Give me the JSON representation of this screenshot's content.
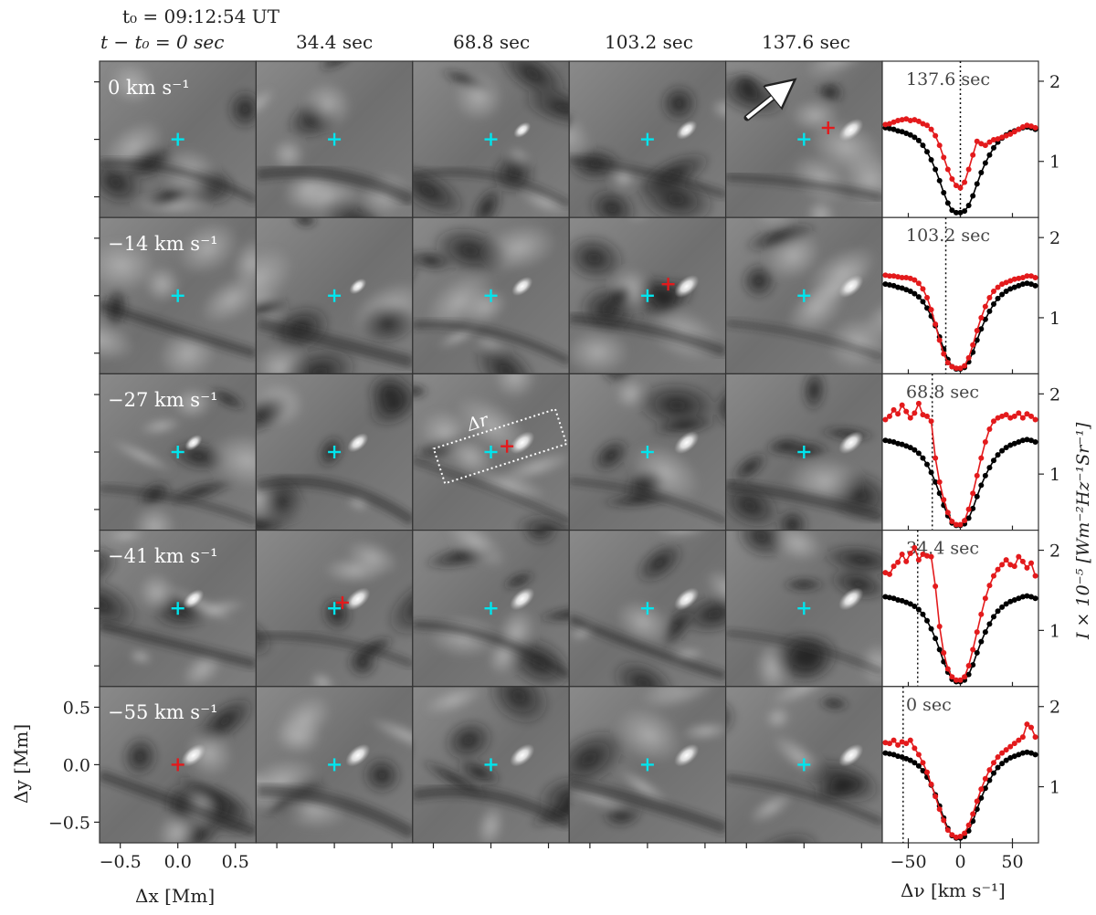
{
  "header": {
    "t0_label": "t₀ = 09:12:54 UT",
    "col_labels": [
      "t − t₀ = 0 sec",
      "34.4 sec",
      "68.8 sec",
      "103.2 sec",
      "137.6 sec"
    ]
  },
  "chart_data": {
    "type": "line",
    "image_grid": {
      "rows_velocity_labels": [
        "0 km s⁻¹",
        "−14 km s⁻¹",
        "−27 km s⁻¹",
        "−41 km s⁻¹",
        "−55 km s⁻¹"
      ],
      "x_axis": {
        "label": "Δx [Mm]",
        "ticks": [
          -0.5,
          0.0,
          0.5
        ],
        "tick_labels": [
          "−0.5",
          "0.0",
          "0.5"
        ],
        "range": [
          -0.68,
          0.68
        ]
      },
      "y_axis": {
        "label": "Δy [Mm]",
        "ticks": [
          -0.5,
          0.0,
          0.5
        ],
        "tick_labels": [
          "−0.5",
          "0.0",
          "0.5"
        ],
        "range": [
          -0.68,
          0.68
        ]
      },
      "box_annotation": "Δr",
      "markers": [
        {
          "row": 0,
          "col": 4,
          "red": [
            0.21,
            0.1
          ]
        },
        {
          "row": 1,
          "col": 3,
          "red": [
            0.18,
            0.1
          ]
        },
        {
          "row": 2,
          "col": 2,
          "red": [
            0.14,
            0.05
          ]
        },
        {
          "row": 3,
          "col": 1,
          "red": [
            0.07,
            0.05
          ]
        },
        {
          "row": 4,
          "col": 0,
          "red": [
            0.0,
            0.0
          ]
        }
      ]
    },
    "profiles": {
      "xlabel": "Δν [km s⁻¹]",
      "ylabel": "I × 10⁻⁵ [Wm⁻²Hz⁻¹Sr⁻¹]",
      "xlim": [
        -75,
        75
      ],
      "ylim": [
        0.3,
        2.25
      ],
      "xticks": [
        -50,
        0,
        50
      ],
      "xtick_labels": [
        "−50",
        "0",
        "50"
      ],
      "yticks": [
        1,
        2
      ],
      "ytick_labels": [
        "1",
        "2"
      ],
      "x": [
        -72,
        -68,
        -64,
        -60,
        -56,
        -52,
        -48,
        -44,
        -40,
        -36,
        -32,
        -28,
        -24,
        -20,
        -16,
        -12,
        -8,
        -4,
        0,
        4,
        8,
        12,
        16,
        20,
        24,
        28,
        32,
        36,
        40,
        44,
        48,
        52,
        56,
        60,
        64,
        68,
        72
      ],
      "panels": [
        {
          "label": "137.6 sec",
          "vline": 0,
          "black": [
            1.42,
            1.41,
            1.4,
            1.38,
            1.37,
            1.35,
            1.33,
            1.3,
            1.26,
            1.2,
            1.12,
            1.02,
            0.9,
            0.76,
            0.61,
            0.48,
            0.39,
            0.36,
            0.36,
            0.38,
            0.45,
            0.57,
            0.72,
            0.86,
            0.98,
            1.08,
            1.17,
            1.24,
            1.29,
            1.33,
            1.36,
            1.38,
            1.4,
            1.42,
            1.43,
            1.42,
            1.4
          ],
          "red": [
            1.46,
            1.47,
            1.49,
            1.51,
            1.52,
            1.53,
            1.51,
            1.52,
            1.5,
            1.47,
            1.45,
            1.4,
            1.32,
            1.2,
            1.05,
            0.9,
            0.78,
            0.7,
            0.67,
            0.74,
            0.9,
            1.08,
            1.25,
            1.22,
            1.2,
            1.24,
            1.27,
            1.28,
            1.3,
            1.32,
            1.34,
            1.37,
            1.4,
            1.43,
            1.45,
            1.44,
            1.42
          ]
        },
        {
          "label": "103.2 sec",
          "vline": -14,
          "black": [
            1.42,
            1.41,
            1.4,
            1.38,
            1.37,
            1.35,
            1.33,
            1.3,
            1.26,
            1.2,
            1.12,
            1.02,
            0.9,
            0.76,
            0.61,
            0.48,
            0.39,
            0.36,
            0.36,
            0.38,
            0.45,
            0.57,
            0.72,
            0.86,
            0.98,
            1.08,
            1.17,
            1.24,
            1.29,
            1.33,
            1.36,
            1.38,
            1.4,
            1.42,
            1.43,
            1.42,
            1.4
          ],
          "red": [
            1.53,
            1.52,
            1.52,
            1.51,
            1.5,
            1.5,
            1.49,
            1.47,
            1.43,
            1.36,
            1.25,
            1.1,
            0.92,
            0.72,
            0.55,
            0.44,
            0.39,
            0.37,
            0.37,
            0.4,
            0.5,
            0.66,
            0.84,
            1.0,
            1.14,
            1.25,
            1.33,
            1.38,
            1.42,
            1.44,
            1.46,
            1.48,
            1.49,
            1.5,
            1.52,
            1.52,
            1.5
          ]
        },
        {
          "label": "68.8 sec",
          "vline": -27,
          "black": [
            1.42,
            1.41,
            1.4,
            1.38,
            1.37,
            1.35,
            1.33,
            1.3,
            1.26,
            1.2,
            1.12,
            1.02,
            0.9,
            0.76,
            0.61,
            0.48,
            0.39,
            0.36,
            0.36,
            0.38,
            0.45,
            0.57,
            0.72,
            0.86,
            0.98,
            1.08,
            1.17,
            1.24,
            1.29,
            1.33,
            1.36,
            1.38,
            1.4,
            1.42,
            1.43,
            1.42,
            1.4
          ],
          "red": [
            1.68,
            1.72,
            1.8,
            1.75,
            1.86,
            1.78,
            1.7,
            1.76,
            1.88,
            1.74,
            1.72,
            1.66,
            1.2,
            0.9,
            0.68,
            0.52,
            0.41,
            0.37,
            0.37,
            0.42,
            0.56,
            0.76,
            0.98,
            1.2,
            1.4,
            1.56,
            1.66,
            1.7,
            1.72,
            1.74,
            1.7,
            1.72,
            1.76,
            1.7,
            1.75,
            1.72,
            1.68
          ]
        },
        {
          "label": "34.4 sec",
          "vline": -41,
          "black": [
            1.42,
            1.41,
            1.4,
            1.38,
            1.37,
            1.35,
            1.33,
            1.3,
            1.26,
            1.2,
            1.12,
            1.02,
            0.9,
            0.76,
            0.61,
            0.48,
            0.39,
            0.36,
            0.36,
            0.38,
            0.45,
            0.57,
            0.72,
            0.86,
            0.98,
            1.08,
            1.17,
            1.24,
            1.29,
            1.33,
            1.36,
            1.38,
            1.4,
            1.42,
            1.43,
            1.42,
            1.4
          ],
          "red": [
            1.72,
            1.7,
            1.8,
            1.85,
            1.95,
            1.86,
            1.96,
            2.03,
            1.88,
            1.95,
            1.93,
            1.92,
            1.55,
            1.05,
            0.72,
            0.52,
            0.42,
            0.38,
            0.38,
            0.42,
            0.56,
            0.76,
            0.98,
            1.2,
            1.4,
            1.56,
            1.68,
            1.76,
            1.82,
            1.88,
            1.82,
            1.8,
            1.92,
            1.86,
            1.78,
            1.84,
            1.68
          ]
        },
        {
          "label": "0 sec",
          "vline": -55,
          "black": [
            1.42,
            1.41,
            1.4,
            1.38,
            1.37,
            1.35,
            1.33,
            1.3,
            1.26,
            1.2,
            1.12,
            1.02,
            0.9,
            0.76,
            0.61,
            0.48,
            0.39,
            0.36,
            0.36,
            0.38,
            0.45,
            0.57,
            0.72,
            0.86,
            0.98,
            1.08,
            1.17,
            1.24,
            1.29,
            1.33,
            1.36,
            1.38,
            1.4,
            1.42,
            1.43,
            1.42,
            1.4
          ],
          "red": [
            1.55,
            1.54,
            1.58,
            1.52,
            1.56,
            1.54,
            1.58,
            1.48,
            1.4,
            1.3,
            1.18,
            1.03,
            0.88,
            0.72,
            0.58,
            0.46,
            0.4,
            0.37,
            0.38,
            0.42,
            0.52,
            0.66,
            0.82,
            0.97,
            1.1,
            1.21,
            1.3,
            1.37,
            1.42,
            1.46,
            1.5,
            1.54,
            1.58,
            1.62,
            1.78,
            1.74,
            1.62
          ]
        }
      ]
    }
  },
  "colors": {
    "observed": "#000000",
    "event": "#e31a1c",
    "marker_ref": "#00e5ee",
    "marker_event": "#e31a1c"
  }
}
